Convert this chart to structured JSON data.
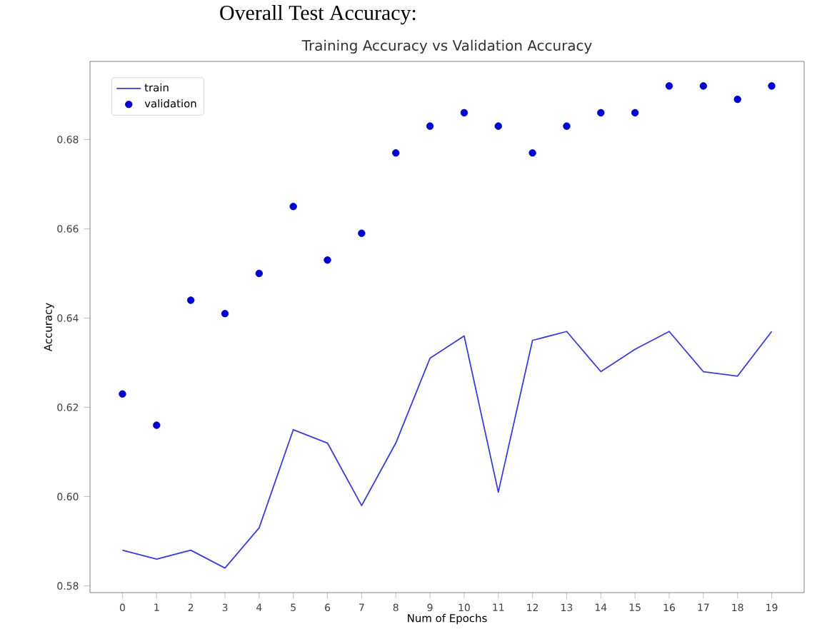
{
  "chart_data": {
    "type": "line",
    "title": "Training Accuracy vs Validation Accuracy",
    "xlabel": "Num of Epochs",
    "ylabel": "Accuracy",
    "annotations": [
      "Overall Test Accuracy:"
    ],
    "categories": [
      "0",
      "1",
      "2",
      "3",
      "4",
      "5",
      "6",
      "7",
      "8",
      "9",
      "10",
      "11",
      "12",
      "13",
      "14",
      "15",
      "16",
      "17",
      "18",
      "19"
    ],
    "series": [
      {
        "name": "train",
        "color": "#3b3bd6",
        "values": [
          0.588,
          0.586,
          0.588,
          0.584,
          0.593,
          0.615,
          0.612,
          0.598,
          0.612,
          0.631,
          0.636,
          0.601,
          0.635,
          0.637,
          0.628,
          0.633,
          0.637,
          0.628,
          0.627,
          0.637
        ]
      },
      {
        "name": "validation",
        "type": "scatter",
        "marker": "circle",
        "color": "#0000cc",
        "values": [
          0.623,
          0.616,
          0.644,
          0.641,
          0.65,
          0.665,
          0.653,
          0.659,
          0.677,
          0.683,
          0.686,
          0.683,
          0.677,
          0.683,
          0.686,
          0.686,
          0.692,
          0.692,
          0.689,
          0.692
        ]
      }
    ],
    "ylim": [
      0.5785,
      0.6975
    ],
    "yticks": [
      0.58,
      {
        "value": 0.6,
        "label": "0.60"
      },
      0.62,
      0.64,
      0.66,
      0.68
    ],
    "legend": "top left"
  }
}
